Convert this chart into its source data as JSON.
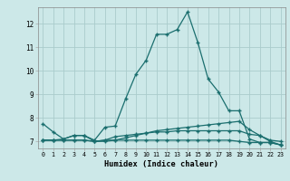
{
  "xlabel": "Humidex (Indice chaleur)",
  "bg_color": "#cce8e8",
  "line_color": "#1a6e6e",
  "grid_color": "#aacccc",
  "x_ticks": [
    0,
    1,
    2,
    3,
    4,
    5,
    6,
    7,
    8,
    9,
    10,
    11,
    12,
    13,
    14,
    15,
    16,
    17,
    18,
    19,
    20,
    21,
    22,
    23
  ],
  "y_ticks": [
    7,
    8,
    9,
    10,
    11,
    12
  ],
  "ylim": [
    6.7,
    12.7
  ],
  "xlim": [
    -0.5,
    23.5
  ],
  "line1_y": [
    7.75,
    7.4,
    7.1,
    7.25,
    7.25,
    7.05,
    7.6,
    7.65,
    8.8,
    9.85,
    10.45,
    11.55,
    11.55,
    11.75,
    12.5,
    11.2,
    9.65,
    9.1,
    8.3,
    8.3,
    7.1,
    6.95,
    6.95,
    6.85
  ],
  "line2_y": [
    7.05,
    7.05,
    7.05,
    7.05,
    7.05,
    7.0,
    7.05,
    7.05,
    7.15,
    7.25,
    7.35,
    7.45,
    7.5,
    7.55,
    7.6,
    7.65,
    7.7,
    7.75,
    7.8,
    7.85,
    7.5,
    7.25,
    7.05,
    7.0
  ],
  "line3_y": [
    7.05,
    7.05,
    7.05,
    7.05,
    7.05,
    7.0,
    7.0,
    7.05,
    7.05,
    7.05,
    7.05,
    7.05,
    7.05,
    7.05,
    7.05,
    7.05,
    7.05,
    7.05,
    7.05,
    7.0,
    6.95,
    6.95,
    6.95,
    6.85
  ],
  "line4_y": [
    7.05,
    7.05,
    7.1,
    7.25,
    7.25,
    7.0,
    7.05,
    7.2,
    7.25,
    7.3,
    7.35,
    7.4,
    7.4,
    7.45,
    7.45,
    7.45,
    7.45,
    7.45,
    7.45,
    7.45,
    7.3,
    7.25,
    7.0,
    6.85
  ]
}
